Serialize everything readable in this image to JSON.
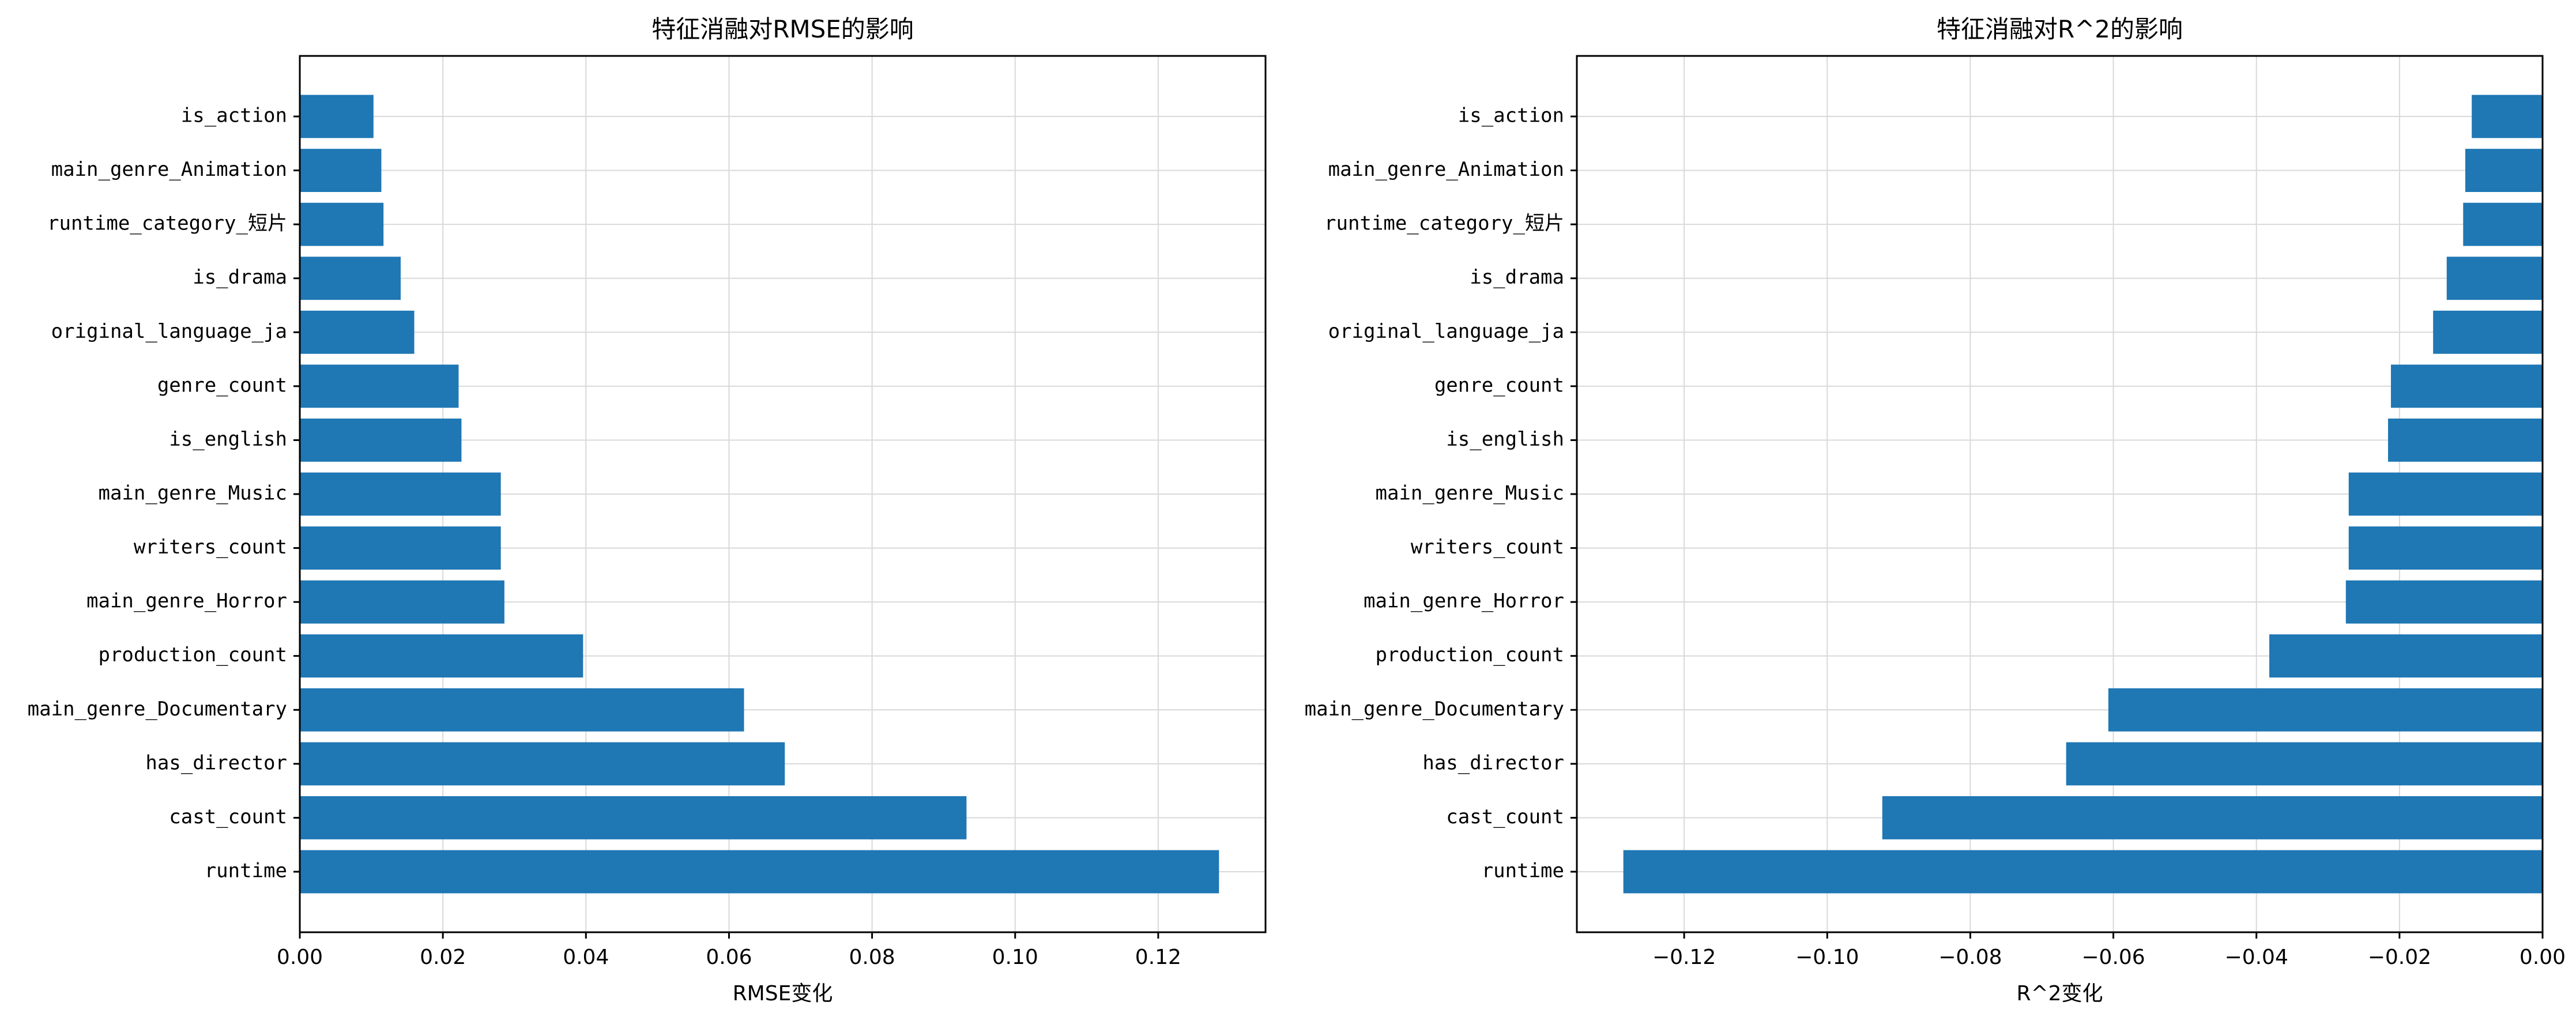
{
  "chart_data": [
    {
      "type": "bar",
      "orientation": "horizontal",
      "title": "特征消融对RMSE的影响",
      "xlabel": "RMSE变化",
      "ylabel": "",
      "xlim": [
        0,
        0.135
      ],
      "xticks": [
        0.0,
        0.02,
        0.04,
        0.06,
        0.08,
        0.1,
        0.12
      ],
      "xtick_labels": [
        "0.00",
        "0.02",
        "0.04",
        "0.06",
        "0.08",
        "0.10",
        "0.12"
      ],
      "grid": true,
      "bar_color": "#1f77b4",
      "categories": [
        "runtime",
        "cast_count",
        "has_director",
        "main_genre_Documentary",
        "production_count",
        "main_genre_Horror",
        "writers_count",
        "main_genre_Music",
        "is_english",
        "genre_count",
        "original_language_ja",
        "is_drama",
        "runtime_category_短片",
        "main_genre_Animation",
        "is_action"
      ],
      "values": [
        0.1285,
        0.0932,
        0.0678,
        0.0621,
        0.0396,
        0.0286,
        0.0281,
        0.0281,
        0.0226,
        0.0222,
        0.016,
        0.0141,
        0.0117,
        0.0114,
        0.0103
      ]
    },
    {
      "type": "bar",
      "orientation": "horizontal",
      "title": "特征消融对R^2的影响",
      "xlabel": "R^2变化",
      "ylabel": "",
      "xlim": [
        -0.135,
        0.0
      ],
      "xticks": [
        -0.12,
        -0.1,
        -0.08,
        -0.06,
        -0.04,
        -0.02,
        0.0
      ],
      "xtick_labels": [
        "−0.12",
        "−0.10",
        "−0.08",
        "−0.06",
        "−0.04",
        "−0.02",
        "0.00"
      ],
      "grid": true,
      "bar_color": "#1f77b4",
      "categories": [
        "runtime",
        "cast_count",
        "has_director",
        "main_genre_Documentary",
        "production_count",
        "main_genre_Horror",
        "writers_count",
        "main_genre_Music",
        "is_english",
        "genre_count",
        "original_language_ja",
        "is_drama",
        "runtime_category_短片",
        "main_genre_Animation",
        "is_action"
      ],
      "values": [
        -0.1285,
        -0.0923,
        -0.0666,
        -0.0607,
        -0.0382,
        -0.0275,
        -0.0271,
        -0.0271,
        -0.0216,
        -0.0212,
        -0.0153,
        -0.0134,
        -0.0111,
        -0.0108,
        -0.0099
      ]
    }
  ]
}
